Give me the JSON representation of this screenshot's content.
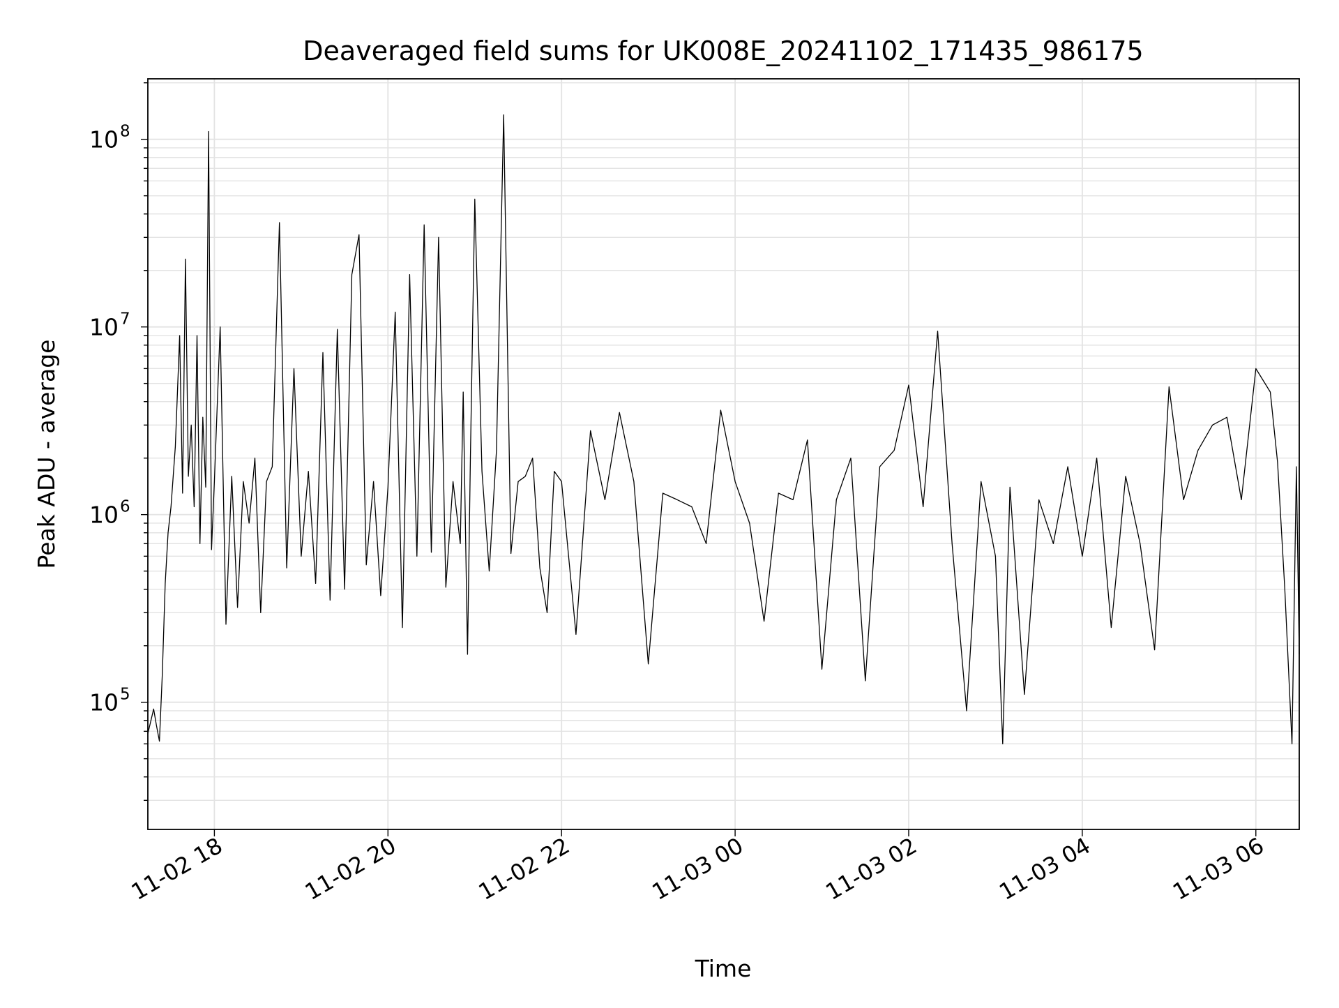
{
  "chart_data": {
    "type": "line",
    "title": "Deaveraged field sums for UK008E_20241102_171435_986175",
    "xlabel": "Time",
    "ylabel": "Peak ADU - average",
    "xscale": "time",
    "yscale": "log",
    "grid": true,
    "legend": "none",
    "line_color": "#000000",
    "xlim": [
      "2024-11-02 17:14",
      "2024-11-03 06:30"
    ],
    "ylim": [
      21000,
      210000000
    ],
    "x_ticks": [
      {
        "t": "2024-11-02 18:00",
        "label": "11-02 18"
      },
      {
        "t": "2024-11-02 20:00",
        "label": "11-02 20"
      },
      {
        "t": "2024-11-02 22:00",
        "label": "11-02 22"
      },
      {
        "t": "2024-11-03 00:00",
        "label": "11-03 00"
      },
      {
        "t": "2024-11-03 02:00",
        "label": "11-03 02"
      },
      {
        "t": "2024-11-03 04:00",
        "label": "11-03 04"
      },
      {
        "t": "2024-11-03 06:00",
        "label": "11-03 06"
      }
    ],
    "y_ticks": [
      {
        "value": 100000,
        "base": "10",
        "exp": "5"
      },
      {
        "value": 1000000,
        "base": "10",
        "exp": "6"
      },
      {
        "value": 10000000,
        "base": "10",
        "exp": "7"
      },
      {
        "value": 100000000,
        "base": "10",
        "exp": "8"
      }
    ],
    "series": [
      {
        "x": [
          "2024-11-02 17:14",
          "2024-11-02 17:18",
          "2024-11-02 17:20",
          "2024-11-02 17:22",
          "2024-11-02 17:24",
          "2024-11-02 17:26",
          "2024-11-02 17:28",
          "2024-11-02 17:30",
          "2024-11-02 17:33",
          "2024-11-02 17:36",
          "2024-11-02 17:38",
          "2024-11-02 17:40",
          "2024-11-02 17:42",
          "2024-11-02 17:44",
          "2024-11-02 17:46",
          "2024-11-02 17:48",
          "2024-11-02 17:50",
          "2024-11-02 17:52",
          "2024-11-02 17:54",
          "2024-11-02 17:56",
          "2024-11-02 17:58",
          "2024-11-02 18:00",
          "2024-11-02 18:04",
          "2024-11-02 18:08",
          "2024-11-02 18:12",
          "2024-11-02 18:16",
          "2024-11-02 18:20",
          "2024-11-02 18:24",
          "2024-11-02 18:28",
          "2024-11-02 18:32",
          "2024-11-02 18:36",
          "2024-11-02 18:40",
          "2024-11-02 18:45",
          "2024-11-02 18:50",
          "2024-11-02 18:55",
          "2024-11-02 19:00",
          "2024-11-02 19:05",
          "2024-11-02 19:10",
          "2024-11-02 19:15",
          "2024-11-02 19:20",
          "2024-11-02 19:25",
          "2024-11-02 19:30",
          "2024-11-02 19:35",
          "2024-11-02 19:40",
          "2024-11-02 19:45",
          "2024-11-02 19:50",
          "2024-11-02 19:55",
          "2024-11-02 20:00",
          "2024-11-02 20:05",
          "2024-11-02 20:10",
          "2024-11-02 20:15",
          "2024-11-02 20:20",
          "2024-11-02 20:25",
          "2024-11-02 20:30",
          "2024-11-02 20:35",
          "2024-11-02 20:40",
          "2024-11-02 20:45",
          "2024-11-02 20:50",
          "2024-11-02 20:52",
          "2024-11-02 20:55",
          "2024-11-02 20:57",
          "2024-11-02 21:00",
          "2024-11-02 21:05",
          "2024-11-02 21:10",
          "2024-11-02 21:15",
          "2024-11-02 21:20",
          "2024-11-02 21:25",
          "2024-11-02 21:30",
          "2024-11-02 21:35",
          "2024-11-02 21:40",
          "2024-11-02 21:45",
          "2024-11-02 21:50",
          "2024-11-02 21:55",
          "2024-11-02 22:00",
          "2024-11-02 22:10",
          "2024-11-02 22:20",
          "2024-11-02 22:30",
          "2024-11-02 22:40",
          "2024-11-02 22:50",
          "2024-11-02 23:00",
          "2024-11-02 23:10",
          "2024-11-02 23:20",
          "2024-11-02 23:30",
          "2024-11-02 23:40",
          "2024-11-02 23:50",
          "2024-11-03 00:00",
          "2024-11-03 00:10",
          "2024-11-03 00:20",
          "2024-11-03 00:30",
          "2024-11-03 00:40",
          "2024-11-03 00:50",
          "2024-11-03 01:00",
          "2024-11-03 01:10",
          "2024-11-03 01:20",
          "2024-11-03 01:30",
          "2024-11-03 01:40",
          "2024-11-03 01:50",
          "2024-11-03 02:00",
          "2024-11-03 02:10",
          "2024-11-03 02:20",
          "2024-11-03 02:30",
          "2024-11-03 02:40",
          "2024-11-03 02:50",
          "2024-11-03 03:00",
          "2024-11-03 03:05",
          "2024-11-03 03:10",
          "2024-11-03 03:20",
          "2024-11-03 03:30",
          "2024-11-03 03:40",
          "2024-11-03 03:50",
          "2024-11-03 04:00",
          "2024-11-03 04:10",
          "2024-11-03 04:20",
          "2024-11-03 04:30",
          "2024-11-03 04:40",
          "2024-11-03 04:50",
          "2024-11-03 05:00",
          "2024-11-03 05:10",
          "2024-11-03 05:20",
          "2024-11-03 05:30",
          "2024-11-03 05:40",
          "2024-11-03 05:50",
          "2024-11-03 06:00",
          "2024-11-03 06:10",
          "2024-11-03 06:15",
          "2024-11-03 06:20",
          "2024-11-03 06:25",
          "2024-11-03 06:28",
          "2024-11-03 06:30"
        ],
        "y": [
          68000,
          92000,
          75000,
          62000,
          140000,
          430000,
          800000,
          1100000,
          2300000,
          9000000,
          1300000,
          23000000,
          1600000,
          3000000,
          1100000,
          9000000,
          700000,
          3300000,
          1400000,
          110000000,
          650000,
          1500000,
          10000000,
          260000,
          1600000,
          320000,
          1500000,
          900000,
          2000000,
          300000,
          1500000,
          1800000,
          36000000,
          520000,
          6000000,
          600000,
          1700000,
          430000,
          7300000,
          350000,
          9700000,
          400000,
          19000000,
          31000000,
          540000,
          1500000,
          370000,
          1400000,
          12000000,
          250000,
          19000000,
          600000,
          35000000,
          630000,
          30000000,
          410000,
          1500000,
          700000,
          4500000,
          180000,
          2000000,
          48000000,
          1700000,
          500000,
          2200000,
          135000000,
          620000,
          1500000,
          1600000,
          2000000,
          520000,
          300000,
          1700000,
          1500000,
          230000,
          2800000,
          1200000,
          3500000,
          1500000,
          160000,
          1300000,
          1200000,
          1100000,
          700000,
          3600000,
          1500000,
          900000,
          270000,
          1300000,
          1200000,
          2500000,
          150000,
          1200000,
          2000000,
          130000,
          1800000,
          2200000,
          4900000,
          1100000,
          9500000,
          700000,
          90000,
          1500000,
          600000,
          60000,
          1400000,
          110000,
          1200000,
          700000,
          1800000,
          600000,
          2000000,
          250000,
          1600000,
          700000,
          190000,
          4800000,
          1200000,
          2200000,
          3000000,
          3300000,
          1200000,
          6000000,
          4500000,
          1900000,
          400000,
          60000,
          1800000,
          180000
        ]
      }
    ]
  }
}
